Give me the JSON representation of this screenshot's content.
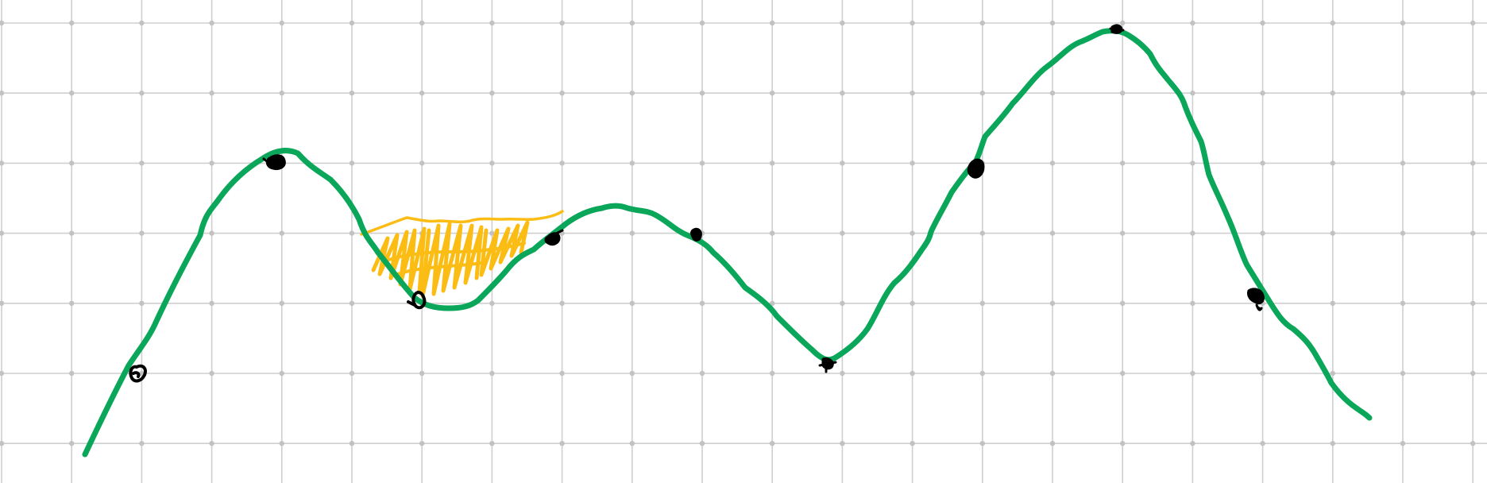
{
  "canvas": {
    "background": "#ffffff",
    "grid_color": "#cfcfcf",
    "grid_dot_color": "#c2c2c2"
  },
  "curve": {
    "color": "#0aa65a",
    "style": "hand-drawn wavy curve"
  },
  "shaded_region": {
    "color": "#fbbd14",
    "style": "scribble fill"
  },
  "marker_color": "#000000",
  "marker_icons": [
    "open-circle-icon",
    "filled-dot-icon",
    "open-circle-icon",
    "filled-dot-icon",
    "filled-dot-icon",
    "filled-dot-icon",
    "filled-dot-icon",
    "filled-dot-icon",
    "filled-dot-icon"
  ]
}
